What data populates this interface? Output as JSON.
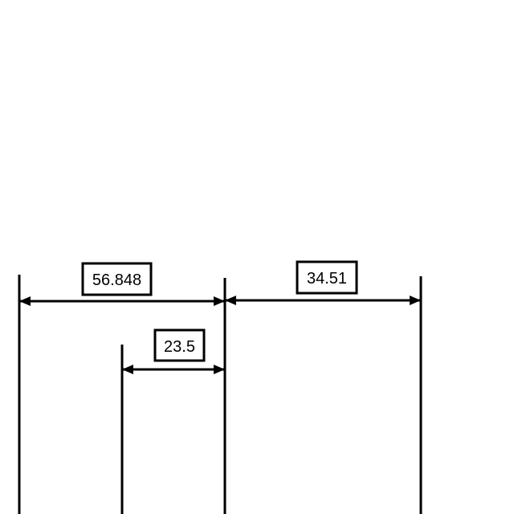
{
  "diagram": {
    "dimensions": [
      {
        "label": "56.848"
      },
      {
        "label": "34.51"
      },
      {
        "label": "23.5"
      }
    ]
  },
  "colors": {
    "stroke": "#000000",
    "background": "#ffffff"
  }
}
